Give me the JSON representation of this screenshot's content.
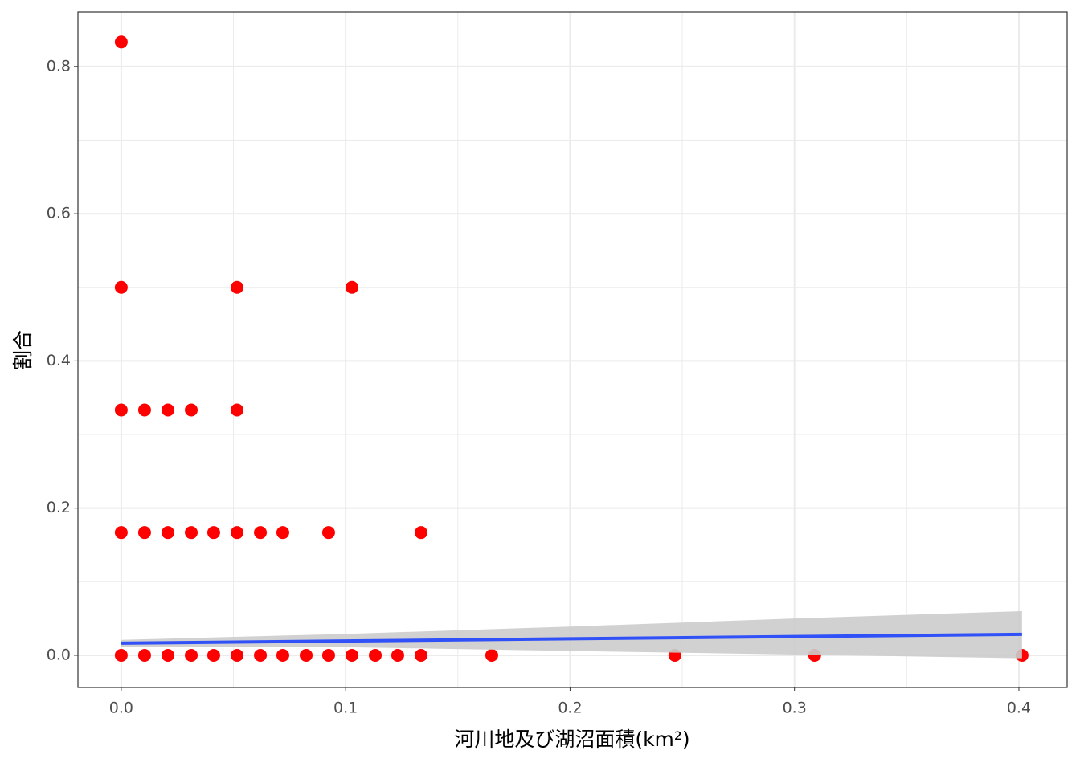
{
  "chart_data": {
    "type": "scatter",
    "x_label": "河川地及び湖沼面積(km²)",
    "y_label": "割合",
    "xlim": [
      -0.0193,
      0.4215
    ],
    "ylim": [
      -0.0437,
      0.874
    ],
    "xticks": [
      {
        "value": 0,
        "label": "0.0"
      },
      0.1,
      0.2,
      0.3,
      0.4
    ],
    "yticks": [
      {
        "value": 0,
        "label": "0.0"
      },
      0.2,
      0.4,
      0.6,
      0.8
    ],
    "x_minor_grid": [
      0.05,
      0.15,
      0.25,
      0.35
    ],
    "y_minor_grid": [
      0.1,
      0.3,
      0.5,
      0.7
    ],
    "grid": true,
    "series": [
      {
        "color": "#ff0000",
        "x": [
          0,
          0,
          0.0516,
          0.1028,
          0,
          0.0104,
          0.0208,
          0.0312,
          0.0516,
          0,
          0.0104,
          0.0208,
          0.0312,
          0.0412,
          0.0516,
          0.062,
          0.072,
          0.0924,
          0.1336,
          0,
          0.0104,
          0.0208,
          0.0312,
          0.0412,
          0.0516,
          0.062,
          0.072,
          0.0824,
          0.0924,
          0.1028,
          0.1132,
          0.1232,
          0.1336,
          0.1651,
          0.2467,
          0.309,
          0.4014
        ],
        "values": [
          0.8333,
          0.5,
          0.5,
          0.5,
          0.3333,
          0.3333,
          0.3333,
          0.3333,
          0.3333,
          0.1667,
          0.1667,
          0.1667,
          0.1667,
          0.1667,
          0.1667,
          0.1667,
          0.1667,
          0.1667,
          0.1667,
          0,
          0,
          0,
          0,
          0,
          0,
          0,
          0,
          0,
          0,
          0,
          0,
          0,
          0,
          0,
          0,
          0,
          0
        ]
      }
    ],
    "fit": {
      "color": "#3050f8",
      "band_color": "#cccccc",
      "x": [
        0,
        0.1,
        0.2,
        0.3,
        0.4014
      ],
      "values": [
        0.0164,
        0.0194,
        0.0224,
        0.0254,
        0.0284
      ],
      "lower": [
        0.012,
        0.011,
        0.006,
        0.001,
        -0.004
      ],
      "upper": [
        0.021,
        0.029,
        0.039,
        0.05,
        0.06
      ]
    }
  }
}
